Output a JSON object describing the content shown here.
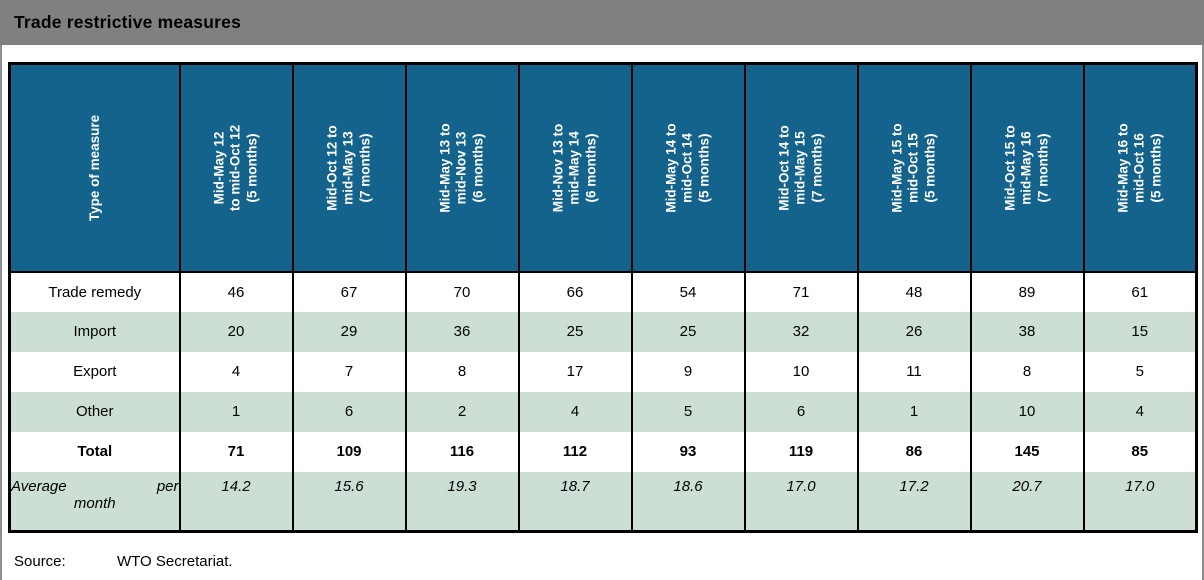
{
  "title": "Trade restrictive measures",
  "table": {
    "corner_header": "Type of measure",
    "columns": [
      {
        "lines": [
          "Mid-May 12",
          "to mid-Oct 12",
          "(5 months)"
        ]
      },
      {
        "lines": [
          "Mid-Oct 12 to",
          "mid-May 13",
          "(7 months)"
        ]
      },
      {
        "lines": [
          "Mid-May 13 to",
          "mid-Nov 13",
          "(6 months)"
        ]
      },
      {
        "lines": [
          "Mid-Nov 13 to",
          "mid-May 14",
          "(6 months)"
        ]
      },
      {
        "lines": [
          "Mid-May 14 to",
          "mid-Oct 14",
          "(5 months)"
        ]
      },
      {
        "lines": [
          "Mid-Oct 14 to",
          "mid-May 15",
          "(7 months)"
        ]
      },
      {
        "lines": [
          "Mid-May 15 to",
          "mid-Oct 15",
          "(5 months)"
        ]
      },
      {
        "lines": [
          "Mid-Oct 15 to",
          "mid-May 16",
          "(7 months)"
        ]
      },
      {
        "lines": [
          "Mid-May 16 to",
          "mid-Oct 16",
          "(5 months)"
        ]
      }
    ],
    "rows": [
      {
        "label": "Trade remedy",
        "values": [
          "46",
          "67",
          "70",
          "66",
          "54",
          "71",
          "48",
          "89",
          "61"
        ],
        "band": false,
        "bold": false,
        "italic": false
      },
      {
        "label": "Import",
        "values": [
          "20",
          "29",
          "36",
          "25",
          "25",
          "32",
          "26",
          "38",
          "15"
        ],
        "band": true,
        "bold": false,
        "italic": false
      },
      {
        "label": "Export",
        "values": [
          "4",
          "7",
          "8",
          "17",
          "9",
          "10",
          "11",
          "8",
          "5"
        ],
        "band": false,
        "bold": false,
        "italic": false
      },
      {
        "label": "Other",
        "values": [
          "1",
          "6",
          "2",
          "4",
          "5",
          "6",
          "1",
          "10",
          "4"
        ],
        "band": true,
        "bold": false,
        "italic": false
      },
      {
        "label": "Total",
        "values": [
          "71",
          "109",
          "116",
          "112",
          "93",
          "119",
          "86",
          "145",
          "85"
        ],
        "band": false,
        "bold": true,
        "italic": false
      },
      {
        "label": "Average per month",
        "label_parts": {
          "line1_left": "Average",
          "line1_right": "per",
          "line2": "month"
        },
        "values": [
          "14.2",
          "15.6",
          "19.3",
          "18.7",
          "18.6",
          "17.0",
          "17.2",
          "20.7",
          "17.0"
        ],
        "band": true,
        "bold": false,
        "italic": true,
        "tall": true
      }
    ]
  },
  "source": {
    "label": "Source:",
    "text": "WTO Secretariat."
  },
  "colors": {
    "title_bar_bg": "#808080",
    "header_cell_bg": "#14638c",
    "band_row_bg": "#cddfd5",
    "border": "#000000",
    "header_text": "#ffffff"
  }
}
